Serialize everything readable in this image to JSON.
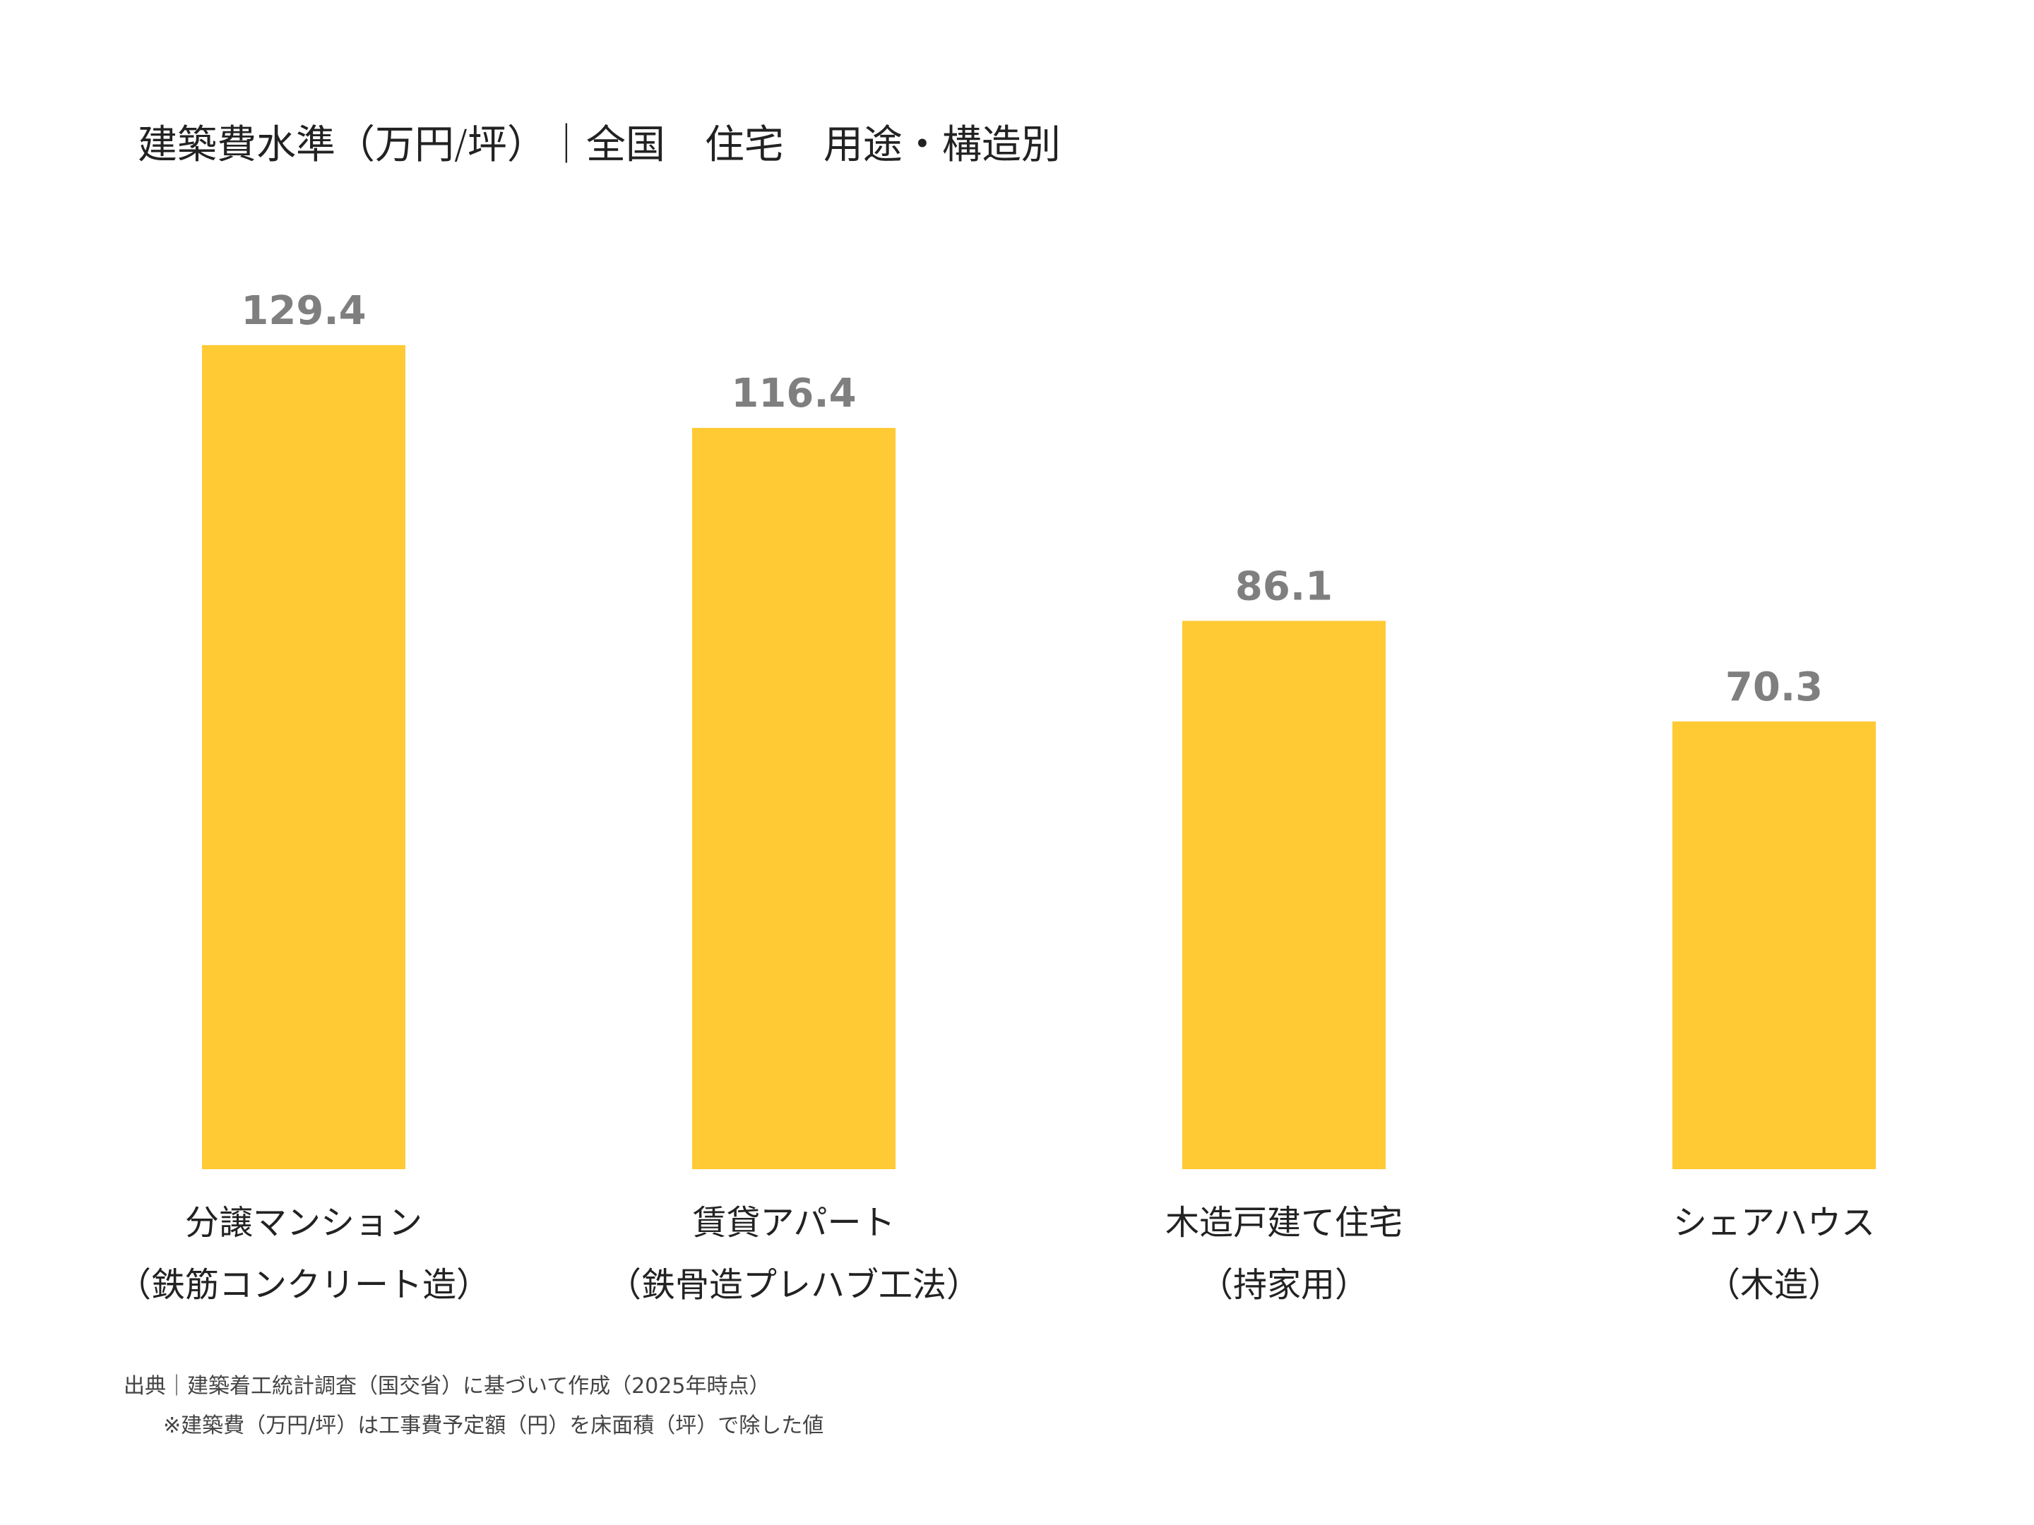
{
  "chart_data": {
    "type": "bar",
    "title": "建築費水準（万円/坪）｜全国　住宅　用途・構造別",
    "categories": [
      [
        "分譲マンション",
        "（鉄筋コンクリート造）"
      ],
      [
        "賃貸アパート",
        "（鉄骨造プレハブ工法）"
      ],
      [
        "木造戸建て住宅",
        "（持家用）"
      ],
      [
        "シェアハウス",
        "（木造）"
      ]
    ],
    "values": [
      129.4,
      116.4,
      86.1,
      70.3
    ],
    "data_labels": [
      "129.4",
      "116.4",
      "86.1",
      "70.3"
    ],
    "ylim": [
      0,
      140
    ],
    "grid": false,
    "bar_color": "#FFCA33",
    "label_color": "#7F7F7F"
  },
  "footer": {
    "source": "出典｜建築着工統計調査（国交省）に基づいて作成（2025年時点）",
    "note": "※建築費（万円/坪）は工事費予定額（円）を床面積（坪）で除した値"
  }
}
